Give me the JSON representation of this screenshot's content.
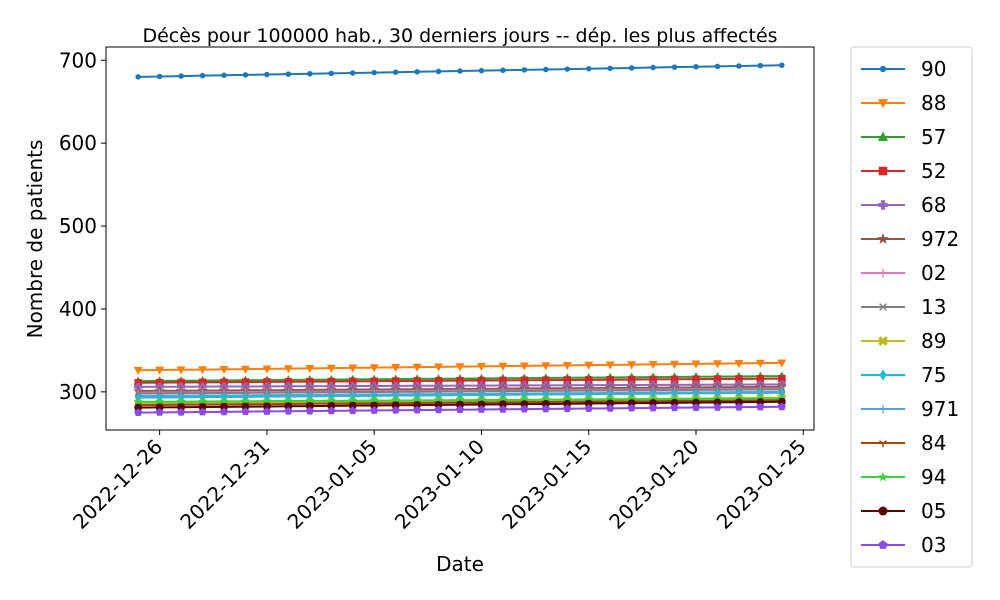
{
  "chart_data": {
    "type": "line",
    "title": "Décès pour 100000 hab., 30 derniers jours -- dép. les plus affectés",
    "xlabel": "Date",
    "ylabel": "Nombre de patients",
    "ylim": [
      254,
      716
    ],
    "xlim": [
      "2022-12-23T12:00",
      "2023-01-25T12:00"
    ],
    "y_ticks": [
      300,
      400,
      500,
      600,
      700
    ],
    "x_ticks": [
      "2022-12-26",
      "2022-12-31",
      "2023-01-05",
      "2023-01-10",
      "2023-01-15",
      "2023-01-20",
      "2023-01-25"
    ],
    "grid": false,
    "legend_position": "outside-right",
    "x": [
      "2022-12-25",
      "2022-12-26",
      "2022-12-27",
      "2022-12-28",
      "2022-12-29",
      "2022-12-30",
      "2022-12-31",
      "2023-01-01",
      "2023-01-02",
      "2023-01-03",
      "2023-01-04",
      "2023-01-05",
      "2023-01-06",
      "2023-01-07",
      "2023-01-08",
      "2023-01-09",
      "2023-01-10",
      "2023-01-11",
      "2023-01-12",
      "2023-01-13",
      "2023-01-14",
      "2023-01-15",
      "2023-01-16",
      "2023-01-17",
      "2023-01-18",
      "2023-01-19",
      "2023-01-20",
      "2023-01-21",
      "2023-01-22",
      "2023-01-23",
      "2023-01-24"
    ],
    "series": [
      {
        "name": "90",
        "color": "#1f77b4",
        "marker": "point",
        "start": 680,
        "end": 694
      },
      {
        "name": "88",
        "color": "#ff7f0e",
        "marker": "triangle-down",
        "start": 326,
        "end": 335
      },
      {
        "name": "57",
        "color": "#2ca02c",
        "marker": "triangle-up",
        "start": 313,
        "end": 319
      },
      {
        "name": "52",
        "color": "#d62728",
        "marker": "square",
        "start": 311,
        "end": 316
      },
      {
        "name": "68",
        "color": "#9467bd",
        "marker": "plus-filled",
        "start": 306,
        "end": 309
      },
      {
        "name": "972",
        "color": "#8c564b",
        "marker": "star",
        "start": 301,
        "end": 306
      },
      {
        "name": "02",
        "color": "#e377c2",
        "marker": "vline",
        "start": 299,
        "end": 304
      },
      {
        "name": "13",
        "color": "#7f7f7f",
        "marker": "x",
        "start": 298,
        "end": 303
      },
      {
        "name": "89",
        "color": "#bcbd22",
        "marker": "x-filled",
        "start": 286,
        "end": 293
      },
      {
        "name": "75",
        "color": "#17becf",
        "marker": "diamond",
        "start": 293,
        "end": 299
      },
      {
        "name": "971",
        "color": "#4ca4e0",
        "marker": "plus",
        "start": 295,
        "end": 300
      },
      {
        "name": "84",
        "color": "#a0440a",
        "marker": "tri-down",
        "start": 284,
        "end": 290
      },
      {
        "name": "94",
        "color": "#3ad23a",
        "marker": "star-small",
        "start": 288,
        "end": 292
      },
      {
        "name": "05",
        "color": "#5a0000",
        "marker": "circle",
        "start": 281,
        "end": 288
      },
      {
        "name": "03",
        "color": "#8b4be8",
        "marker": "pentagon",
        "start": 275,
        "end": 282
      }
    ]
  }
}
